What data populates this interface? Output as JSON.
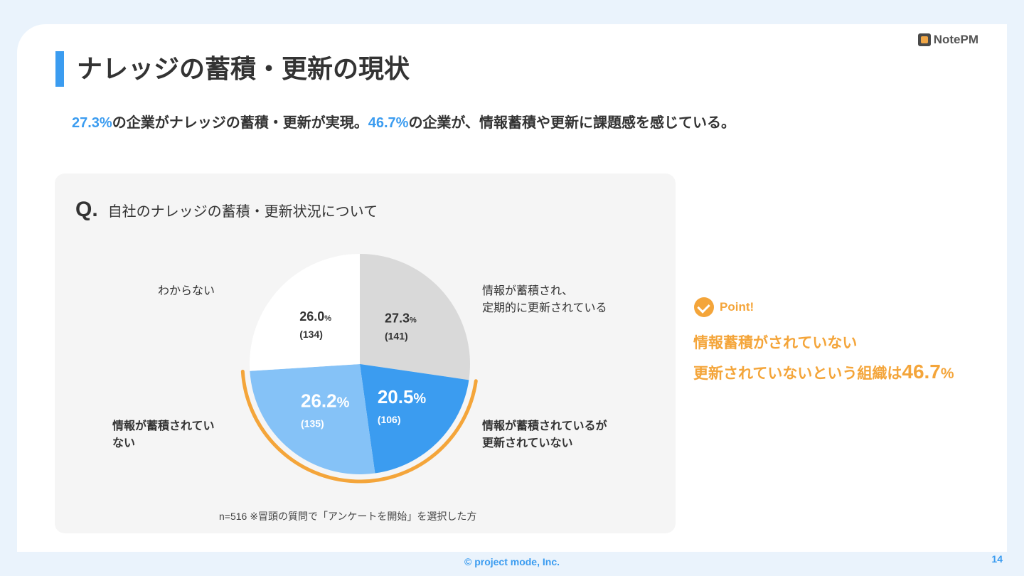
{
  "brand": {
    "logo_text": "NotePM"
  },
  "header": {
    "title": "ナレッジの蓄積・更新の現状",
    "subtitle_pct1": "27.3%",
    "subtitle_mid": "の企業がナレッジの蓄積・更新が実現。",
    "subtitle_pct2": "46.7%",
    "subtitle_end": "の企業が、情報蓄積や更新に課題感を感じている。"
  },
  "question": {
    "mark": "Q.",
    "text": "自社のナレッジの蓄積・更新状況について"
  },
  "labels": {
    "unknown": "わからない",
    "accumulated_l1": "情報が蓄積され、",
    "accumulated_l2": "定期的に更新されている",
    "not_accumulated_l1": "情報が蓄積されてい",
    "not_accumulated_l2": "ない",
    "not_updated_l1": "情報が蓄積されているが",
    "not_updated_l2": "更新されていない"
  },
  "note": "n=516  ※冒頭の質問で「アンケートを開始」を選択した方",
  "point": {
    "badge": "Point!",
    "line1": "情報蓄積がされていない",
    "line2_prefix": "更新されていないという組織は",
    "line2_value": "46.7",
    "line2_unit": "%"
  },
  "footer": {
    "copyright": "© project mode, Inc.",
    "page": "14"
  },
  "colors": {
    "accent_blue": "#3b9cf0",
    "light_blue": "#85c2f7",
    "gray": "#d9d9d9",
    "white": "#ffffff",
    "orange": "#f4a53a"
  },
  "chart_data": {
    "type": "pie",
    "slices": [
      {
        "label": "情報が蓄積され、定期的に更新されている",
        "value": 27.3,
        "count": "(141)",
        "pct_text": "27.3",
        "unit": "%",
        "color": "#d9d9d9"
      },
      {
        "label": "情報が蓄積されているが更新されていない",
        "value": 20.5,
        "count": "(106)",
        "pct_text": "20.5",
        "unit": "%",
        "color": "#3b9cf0"
      },
      {
        "label": "情報が蓄積されていない",
        "value": 26.2,
        "count": "(135)",
        "pct_text": "26.2",
        "unit": "%",
        "color": "#85c2f7"
      },
      {
        "label": "わからない",
        "value": 26.0,
        "count": "(134)",
        "pct_text": "26.0",
        "unit": "%",
        "color": "#ffffff"
      }
    ],
    "highlight": {
      "slices": [
        1,
        2
      ],
      "color": "#f4a53a"
    }
  }
}
